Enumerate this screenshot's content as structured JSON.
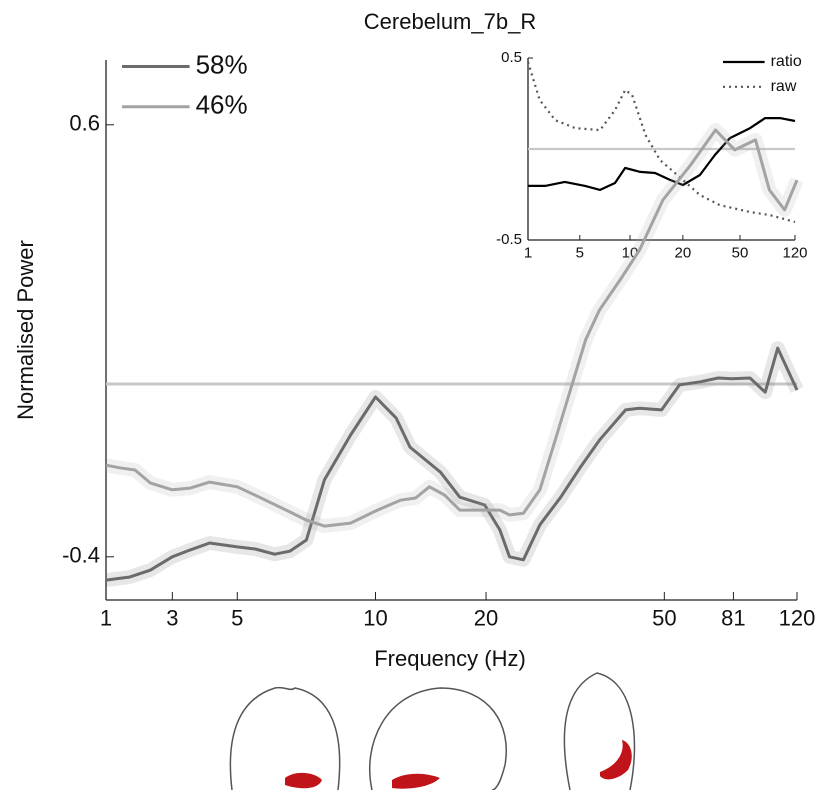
{
  "chart_data": [
    {
      "type": "line",
      "title": "Cerebelum_7b_R",
      "x_label": "Frequency (Hz)",
      "y_label": "Normalised Power",
      "xlim": [
        0,
        50
      ],
      "ylim": [
        -0.5,
        0.75
      ],
      "xticks": [
        {
          "value": 0,
          "label": "1"
        },
        {
          "value": 4.8,
          "label": "3"
        },
        {
          "value": 9.5,
          "label": "5"
        },
        {
          "value": 19.5,
          "label": "10"
        },
        {
          "value": 27.5,
          "label": "20"
        },
        {
          "value": 40.4,
          "label": "50"
        },
        {
          "value": 45.4,
          "label": "81"
        },
        {
          "value": 50,
          "label": "120"
        }
      ],
      "yticks": [
        -0.4,
        0.6
      ],
      "hline": 0,
      "legend": "upper left",
      "band": true,
      "series": [
        {
          "name": "58%",
          "color": "#6b6b6b",
          "x": [
            0,
            1.7,
            3.2,
            4.8,
            6.1,
            7.5,
            9.5,
            10.8,
            12.2,
            13.3,
            14.5,
            15.8,
            17.7,
            19.5,
            21.0,
            22.0,
            24.2,
            25.6,
            27.4,
            28.5,
            29.2,
            30.2,
            31.4,
            32.9,
            34.3,
            35.7,
            37.6,
            38.6,
            40.2,
            41.5,
            43.0,
            44.3,
            45.3,
            46.6,
            47.7,
            48.6,
            50
          ],
          "values": [
            -0.454,
            -0.447,
            -0.431,
            -0.4,
            -0.384,
            -0.368,
            -0.377,
            -0.382,
            -0.394,
            -0.387,
            -0.361,
            -0.222,
            -0.118,
            -0.03,
            -0.079,
            -0.146,
            -0.204,
            -0.262,
            -0.28,
            -0.338,
            -0.4,
            -0.407,
            -0.326,
            -0.262,
            -0.194,
            -0.13,
            -0.06,
            -0.056,
            -0.06,
            -0.002,
            0.005,
            0.014,
            0.012,
            0.014,
            -0.019,
            0.083,
            -0.014
          ]
        },
        {
          "name": "46%",
          "color": "#a3a3a3",
          "x": [
            0,
            1.0,
            2.1,
            3.2,
            4.8,
            6.1,
            7.5,
            9.5,
            11.1,
            13.3,
            14.5,
            15.8,
            17.7,
            19.5,
            21.3,
            22.4,
            23.4,
            24.5,
            25.6,
            27.4,
            28.5,
            29.2,
            30.2,
            31.4,
            32.5,
            33.6,
            34.7,
            35.7,
            37.2,
            38.6,
            40.3,
            42.3,
            44.1,
            45.5,
            47.0,
            48.0,
            49.1,
            50
          ],
          "values": [
            -0.188,
            -0.194,
            -0.199,
            -0.229,
            -0.245,
            -0.241,
            -0.227,
            -0.238,
            -0.262,
            -0.296,
            -0.315,
            -0.329,
            -0.322,
            -0.294,
            -0.269,
            -0.264,
            -0.238,
            -0.257,
            -0.292,
            -0.292,
            -0.292,
            -0.303,
            -0.299,
            -0.245,
            -0.13,
            -0.014,
            0.102,
            0.171,
            0.241,
            0.31,
            0.426,
            0.507,
            0.588,
            0.542,
            0.565,
            0.449,
            0.403,
            0.472
          ]
        }
      ]
    },
    {
      "type": "line",
      "xlim": [
        0,
        50
      ],
      "ylim": [
        -0.5,
        0.5
      ],
      "xticks": [
        {
          "value": 0,
          "label": "1"
        },
        {
          "value": 9.7,
          "label": "5"
        },
        {
          "value": 19.1,
          "label": "10"
        },
        {
          "value": 29.0,
          "label": "20"
        },
        {
          "value": 39.7,
          "label": "50"
        },
        {
          "value": 50,
          "label": "120"
        }
      ],
      "yticks": [
        -0.5,
        0.5
      ],
      "hline": 0,
      "legend": "upper right",
      "band": false,
      "series": [
        {
          "name": "ratio",
          "color": "#000000",
          "linestyle": "solid",
          "x": [
            0,
            3.2,
            6.9,
            10.7,
            13.5,
            16.3,
            18.2,
            21.0,
            23.8,
            26.6,
            29.0,
            32.2,
            35.0,
            37.8,
            41.6,
            44.4,
            47.2,
            50
          ],
          "values": [
            -0.203,
            -0.203,
            -0.181,
            -0.203,
            -0.225,
            -0.187,
            -0.104,
            -0.126,
            -0.132,
            -0.17,
            -0.198,
            -0.143,
            -0.033,
            0.06,
            0.115,
            0.17,
            0.17,
            0.154
          ]
        },
        {
          "name": "raw",
          "color": "#555555",
          "linestyle": "dotted",
          "x": [
            0,
            2.2,
            5.1,
            8.8,
            13.5,
            16.3,
            18.2,
            19.5,
            22.0,
            24.7,
            29.0,
            32.2,
            35.9,
            41.6,
            45.3,
            50
          ],
          "values": [
            0.478,
            0.269,
            0.159,
            0.115,
            0.104,
            0.214,
            0.324,
            0.297,
            0.077,
            -0.06,
            -0.17,
            -0.253,
            -0.308,
            -0.346,
            -0.363,
            -0.401
          ]
        }
      ]
    }
  ]
}
